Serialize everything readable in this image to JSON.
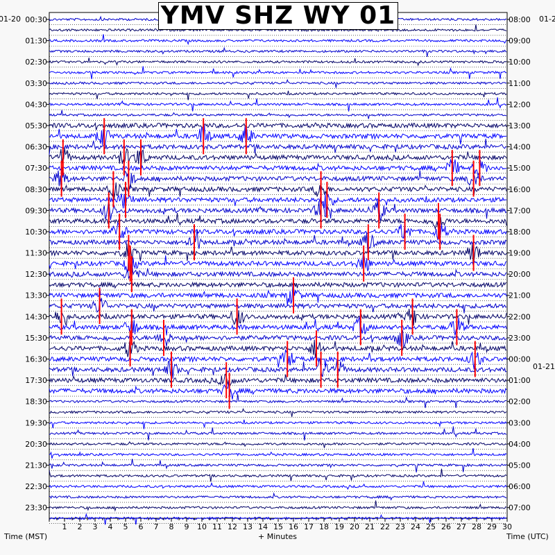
{
  "chart_data": {
    "type": "seismogram",
    "title": "YMV SHZ WY 01",
    "left_date": "01-20",
    "right_date_top": "01-2",
    "right_date_mid": "01-21",
    "xlabel": "+ Minutes",
    "left_axis_label": "Time (MST)",
    "right_axis_label": "Time (UTC)",
    "x_ticks": [
      "1",
      "2",
      "3",
      "4",
      "5",
      "6",
      "7",
      "8",
      "9",
      "10",
      "11",
      "12",
      "13",
      "14",
      "15",
      "16",
      "17",
      "18",
      "19",
      "20",
      "21",
      "22",
      "23",
      "24",
      "25",
      "26",
      "27",
      "28",
      "29",
      "30"
    ],
    "xlim": [
      0,
      30
    ],
    "left_times": [
      "00:30",
      "01:30",
      "02:30",
      "03:30",
      "04:30",
      "05:30",
      "06:30",
      "07:30",
      "08:30",
      "09:30",
      "10:30",
      "11:30",
      "12:30",
      "13:30",
      "14:30",
      "15:30",
      "16:30",
      "17:30",
      "18:30",
      "19:30",
      "20:30",
      "21:30",
      "22:30",
      "23:30"
    ],
    "right_times": [
      "08:00",
      "09:00",
      "10:00",
      "11:00",
      "12:00",
      "13:00",
      "14:00",
      "15:00",
      "16:00",
      "17:00",
      "18:00",
      "19:00",
      "20:00",
      "21:00",
      "22:00",
      "23:00",
      "00:00",
      "01:00",
      "02:00",
      "03:00",
      "04:00",
      "05:00",
      "06:00",
      "07:00"
    ],
    "trace_count": 48,
    "minutes_per_trace": 30,
    "trace_colors": [
      "#0000cc",
      "#000066",
      "#0000ff"
    ],
    "clip_color": "#ff0000",
    "events": [
      {
        "trace": 11,
        "minute": 3.6
      },
      {
        "trace": 11,
        "minute": 10.1
      },
      {
        "trace": 11,
        "minute": 12.9
      },
      {
        "trace": 13,
        "minute": 0.9
      },
      {
        "trace": 13,
        "minute": 4.9
      },
      {
        "trace": 13,
        "minute": 6.0
      },
      {
        "trace": 14,
        "minute": 26.4
      },
      {
        "trace": 14,
        "minute": 28.2
      },
      {
        "trace": 15,
        "minute": 0.8
      },
      {
        "trace": 15,
        "minute": 5.2
      },
      {
        "trace": 15,
        "minute": 27.8
      },
      {
        "trace": 16,
        "minute": 4.2
      },
      {
        "trace": 16,
        "minute": 17.8
      },
      {
        "trace": 17,
        "minute": 5.0
      },
      {
        "trace": 17,
        "minute": 18.2
      },
      {
        "trace": 18,
        "minute": 3.9
      },
      {
        "trace": 18,
        "minute": 17.8
      },
      {
        "trace": 18,
        "minute": 21.6
      },
      {
        "trace": 19,
        "minute": 25.5
      },
      {
        "trace": 20,
        "minute": 4.6
      },
      {
        "trace": 20,
        "minute": 23.3
      },
      {
        "trace": 20,
        "minute": 25.6
      },
      {
        "trace": 21,
        "minute": 9.5
      },
      {
        "trace": 21,
        "minute": 20.9
      },
      {
        "trace": 22,
        "minute": 5.2
      },
      {
        "trace": 22,
        "minute": 27.8
      },
      {
        "trace": 23,
        "minute": 5.3
      },
      {
        "trace": 23,
        "minute": 20.6
      },
      {
        "trace": 24,
        "minute": 5.4
      },
      {
        "trace": 26,
        "minute": 16.0
      },
      {
        "trace": 27,
        "minute": 3.3
      },
      {
        "trace": 28,
        "minute": 0.8
      },
      {
        "trace": 28,
        "minute": 12.3
      },
      {
        "trace": 28,
        "minute": 23.8
      },
      {
        "trace": 29,
        "minute": 5.4
      },
      {
        "trace": 29,
        "minute": 20.4
      },
      {
        "trace": 29,
        "minute": 26.7
      },
      {
        "trace": 30,
        "minute": 7.5
      },
      {
        "trace": 30,
        "minute": 23.1
      },
      {
        "trace": 31,
        "minute": 5.3
      },
      {
        "trace": 31,
        "minute": 17.5
      },
      {
        "trace": 32,
        "minute": 15.6
      },
      {
        "trace": 32,
        "minute": 27.9
      },
      {
        "trace": 33,
        "minute": 8.0
      },
      {
        "trace": 33,
        "minute": 17.8
      },
      {
        "trace": 33,
        "minute": 18.9
      },
      {
        "trace": 34,
        "minute": 11.6
      },
      {
        "trace": 35,
        "minute": 11.8
      }
    ]
  }
}
